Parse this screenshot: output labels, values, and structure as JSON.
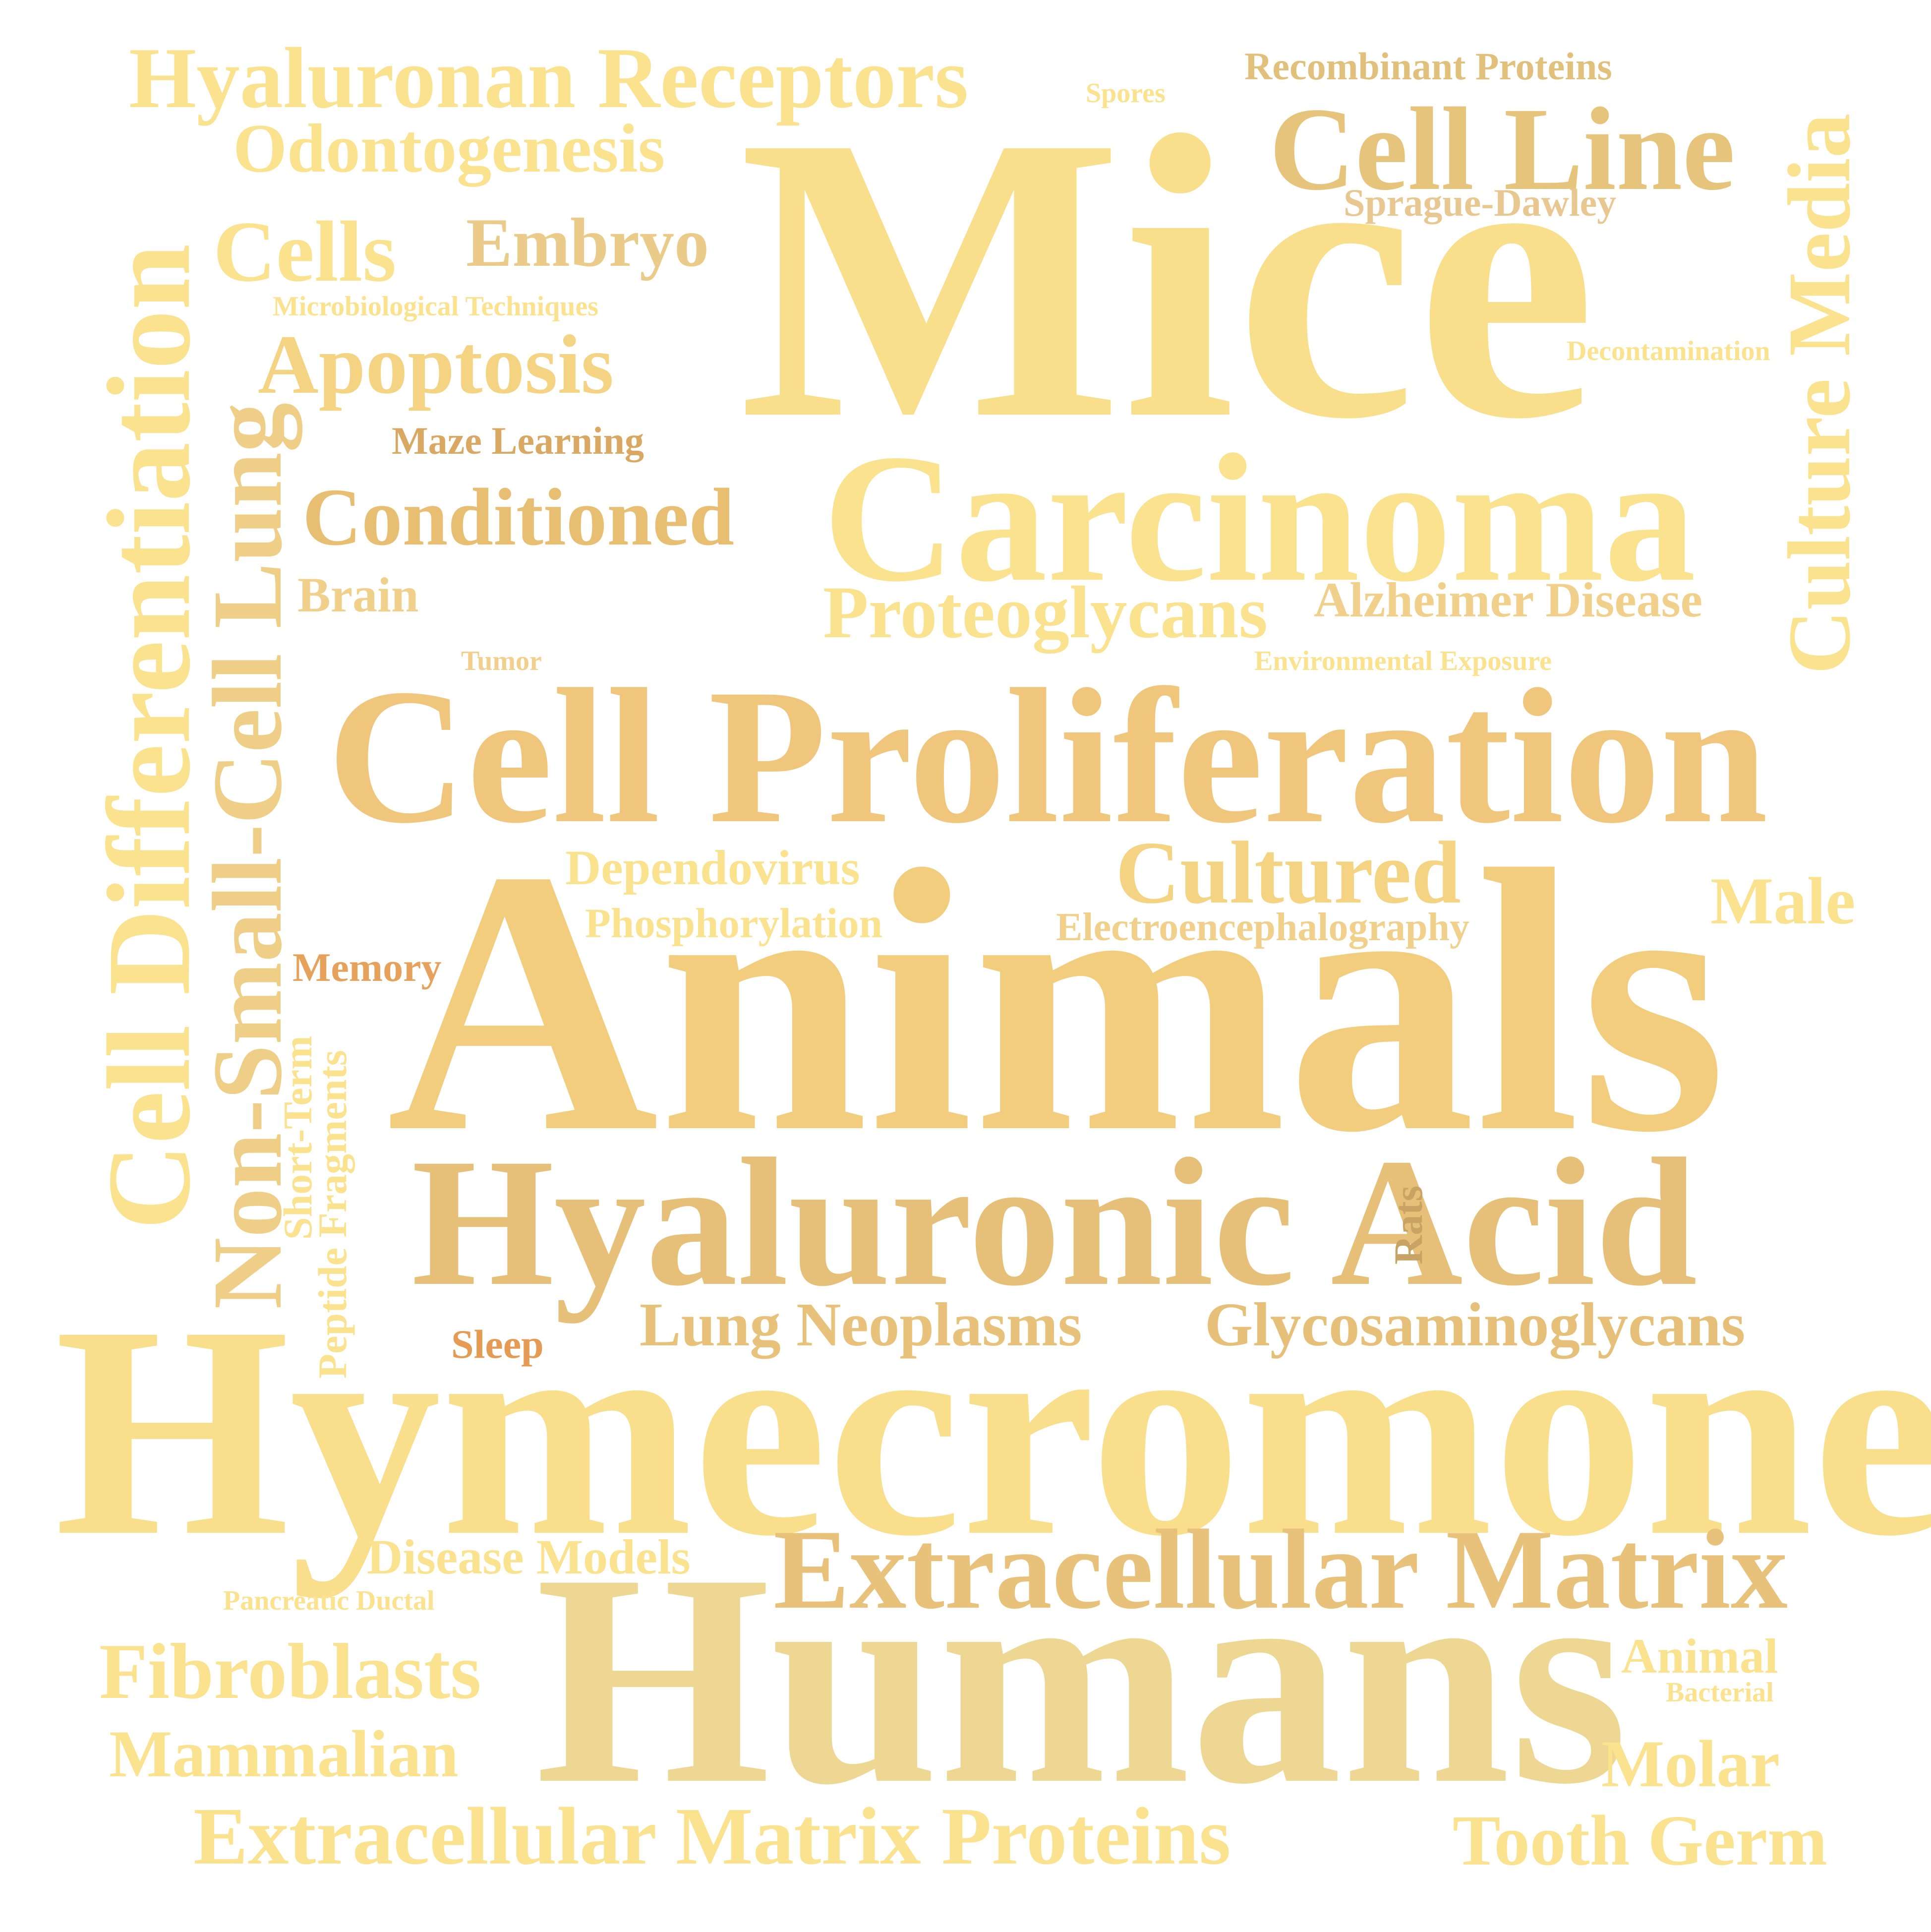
{
  "palette": {
    "light": "#f9df8b",
    "pale": "#fbe28f",
    "mid": "#f4d382",
    "warm": "#edc77c",
    "tan": "#e8c27a",
    "sand": "#eed693",
    "deep": "#e1a561",
    "orange": "#e6a15a"
  },
  "words": [
    {
      "id": "mice",
      "text": "Mice",
      "color": "#f9df8b"
    },
    {
      "id": "animals",
      "text": "Animals",
      "color": "#f2cd7d"
    },
    {
      "id": "hymecromone",
      "text": "Hymecromone",
      "color": "#f9df8b"
    },
    {
      "id": "humans",
      "text": "Humans",
      "color": "#eed693"
    },
    {
      "id": "cell-proliferation",
      "text": "Cell Proliferation",
      "color": "#efc67c"
    },
    {
      "id": "carcinoma",
      "text": "Carcinoma",
      "color": "#fbe28f"
    },
    {
      "id": "hyaluronic-acid",
      "text": "Hyaluronic Acid",
      "color": "#e6c079"
    },
    {
      "id": "extracellular-matrix",
      "text": "Extracellular Matrix",
      "color": "#e8c27a"
    },
    {
      "id": "cell-differentiation",
      "text": "Cell Differentiation",
      "color": "#fbe28f"
    },
    {
      "id": "non-small-cell-lung",
      "text": "Non-Small-Cell Lung",
      "color": "#efcf87"
    },
    {
      "id": "culture-media",
      "text": "Culture Media",
      "color": "#fbe28f"
    },
    {
      "id": "cell-line",
      "text": "Cell Line",
      "color": "#e7c47b"
    },
    {
      "id": "hyaluronan-receptors",
      "text": "Hyaluronan Receptors",
      "color": "#fbe28f"
    },
    {
      "id": "odontogenesis",
      "text": "Odontogenesis",
      "color": "#fbe28f"
    },
    {
      "id": "cells",
      "text": "Cells",
      "color": "#fbe28f"
    },
    {
      "id": "embryo",
      "text": "Embryo",
      "color": "#ebcb89"
    },
    {
      "id": "apoptosis",
      "text": "Apoptosis",
      "color": "#f4d382"
    },
    {
      "id": "conditioned",
      "text": "Conditioned",
      "color": "#e8bf72"
    },
    {
      "id": "proteoglycans",
      "text": "Proteoglycans",
      "color": "#fbe28f"
    },
    {
      "id": "alzheimer-disease",
      "text": "Alzheimer Disease",
      "color": "#f0d08b"
    },
    {
      "id": "cultured",
      "text": "Cultured",
      "color": "#f4d382"
    },
    {
      "id": "lung-neoplasms",
      "text": "Lung Neoplasms",
      "color": "#e8c27a"
    },
    {
      "id": "glycosaminoglycans",
      "text": "Glycosaminoglycans",
      "color": "#e6c079"
    },
    {
      "id": "fibroblasts",
      "text": "Fibroblasts",
      "color": "#fbe28f"
    },
    {
      "id": "mammalian",
      "text": "Mammalian",
      "color": "#fbe28f"
    },
    {
      "id": "extracellular-matrix-proteins",
      "text": "Extracellular Matrix Proteins",
      "color": "#fbe28f"
    },
    {
      "id": "tooth-germ",
      "text": "Tooth Germ",
      "color": "#fbe28f"
    },
    {
      "id": "molar",
      "text": "Molar",
      "color": "#fbe28f"
    },
    {
      "id": "male",
      "text": "Male",
      "color": "#fbe28f"
    },
    {
      "id": "dependovirus",
      "text": "Dependovirus",
      "color": "#fbe28f"
    },
    {
      "id": "phosphorylation",
      "text": "Phosphorylation",
      "color": "#fbe28f"
    },
    {
      "id": "electroencephalography",
      "text": "Electroencephalography",
      "color": "#f0d08b"
    },
    {
      "id": "disease-models",
      "text": "Disease Models",
      "color": "#fbe28f"
    },
    {
      "id": "animal",
      "text": "Animal",
      "color": "#fbe28f"
    },
    {
      "id": "brain",
      "text": "Brain",
      "color": "#f0d08b"
    },
    {
      "id": "recombinant-proteins",
      "text": "Recombinant Proteins",
      "color": "#e1c07b"
    },
    {
      "id": "sprague-dawley",
      "text": "Sprague-Dawley",
      "color": "#e8c890"
    },
    {
      "id": "maze-learning",
      "text": "Maze Learning",
      "color": "#d9a862"
    },
    {
      "id": "memory",
      "text": "Memory",
      "color": "#e6a15a"
    },
    {
      "id": "sleep",
      "text": "Sleep",
      "color": "#e69b55"
    },
    {
      "id": "short-term",
      "text": "Short-Term",
      "color": "#fbe28f"
    },
    {
      "id": "peptide-fragments",
      "text": "Peptide Fragments",
      "color": "#fbe28f"
    },
    {
      "id": "rats",
      "text": "Rats",
      "color": "#c7a464"
    },
    {
      "id": "tumor",
      "text": "Tumor",
      "color": "#f2cf8d"
    },
    {
      "id": "environmental-exposure",
      "text": "Environmental Exposure",
      "color": "#fbe28f"
    },
    {
      "id": "decontamination",
      "text": "Decontamination",
      "color": "#fbe28f"
    },
    {
      "id": "microbiological-techniques",
      "text": "Microbiological Techniques",
      "color": "#fbe28f"
    },
    {
      "id": "spores",
      "text": "Spores",
      "color": "#fbe28f"
    },
    {
      "id": "pancreatic-ductal",
      "text": "Pancreatic Ductal",
      "color": "#fbe28f"
    },
    {
      "id": "bacterial",
      "text": "Bacterial",
      "color": "#fbe28f"
    }
  ]
}
